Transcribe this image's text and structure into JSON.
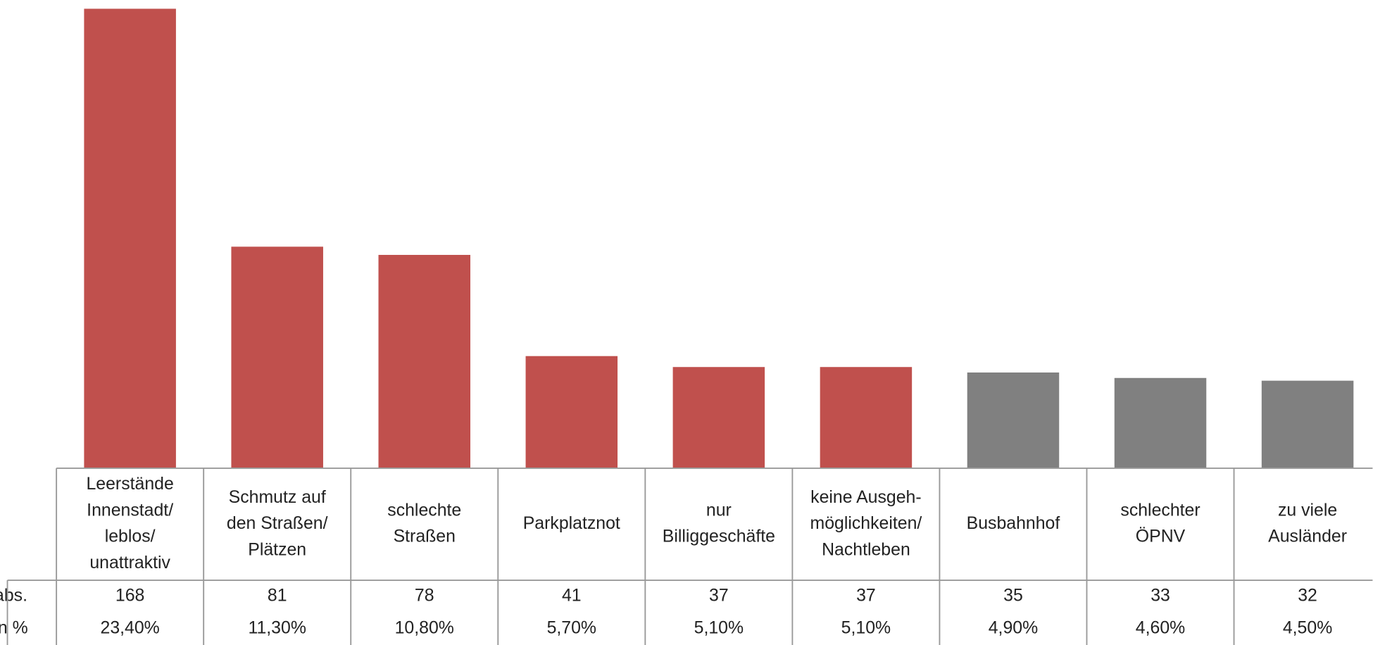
{
  "chart_data": {
    "type": "bar",
    "categories": [
      [
        "Leerstände",
        "Innenstadt/",
        "leblos/",
        "unattraktiv"
      ],
      [
        "Schmutz auf",
        "den Straßen/",
        "Plätzen"
      ],
      [
        "schlechte",
        "Straßen"
      ],
      [
        "Parkplatznot"
      ],
      [
        "nur",
        "Billiggeschäfte"
      ],
      [
        "keine Ausgeh-",
        "möglichkeiten/",
        "Nachtleben"
      ],
      [
        "Busbahnhof"
      ],
      [
        "schlechter",
        "ÖPNV"
      ],
      [
        "zu viele",
        "Ausländer"
      ]
    ],
    "values": [
      168,
      81,
      78,
      41,
      37,
      37,
      35,
      33,
      32
    ],
    "colors": [
      "#c0504d",
      "#c0504d",
      "#c0504d",
      "#c0504d",
      "#c0504d",
      "#c0504d",
      "#808080",
      "#808080",
      "#808080"
    ],
    "table_rows": [
      {
        "label": "abs.",
        "values": [
          168,
          81,
          78,
          41,
          37,
          37,
          35,
          33,
          32
        ]
      },
      {
        "label": "in %",
        "values": [
          23.4,
          11.3,
          10.8,
          5.7,
          5.1,
          5.1,
          4.9,
          4.6,
          4.5
        ],
        "value_labels": [
          "23,40%",
          "11,30%",
          "10,80%",
          "5,70%",
          "5,10%",
          "5,10%",
          "4,90%",
          "4,60%",
          "4,50%"
        ]
      }
    ]
  }
}
